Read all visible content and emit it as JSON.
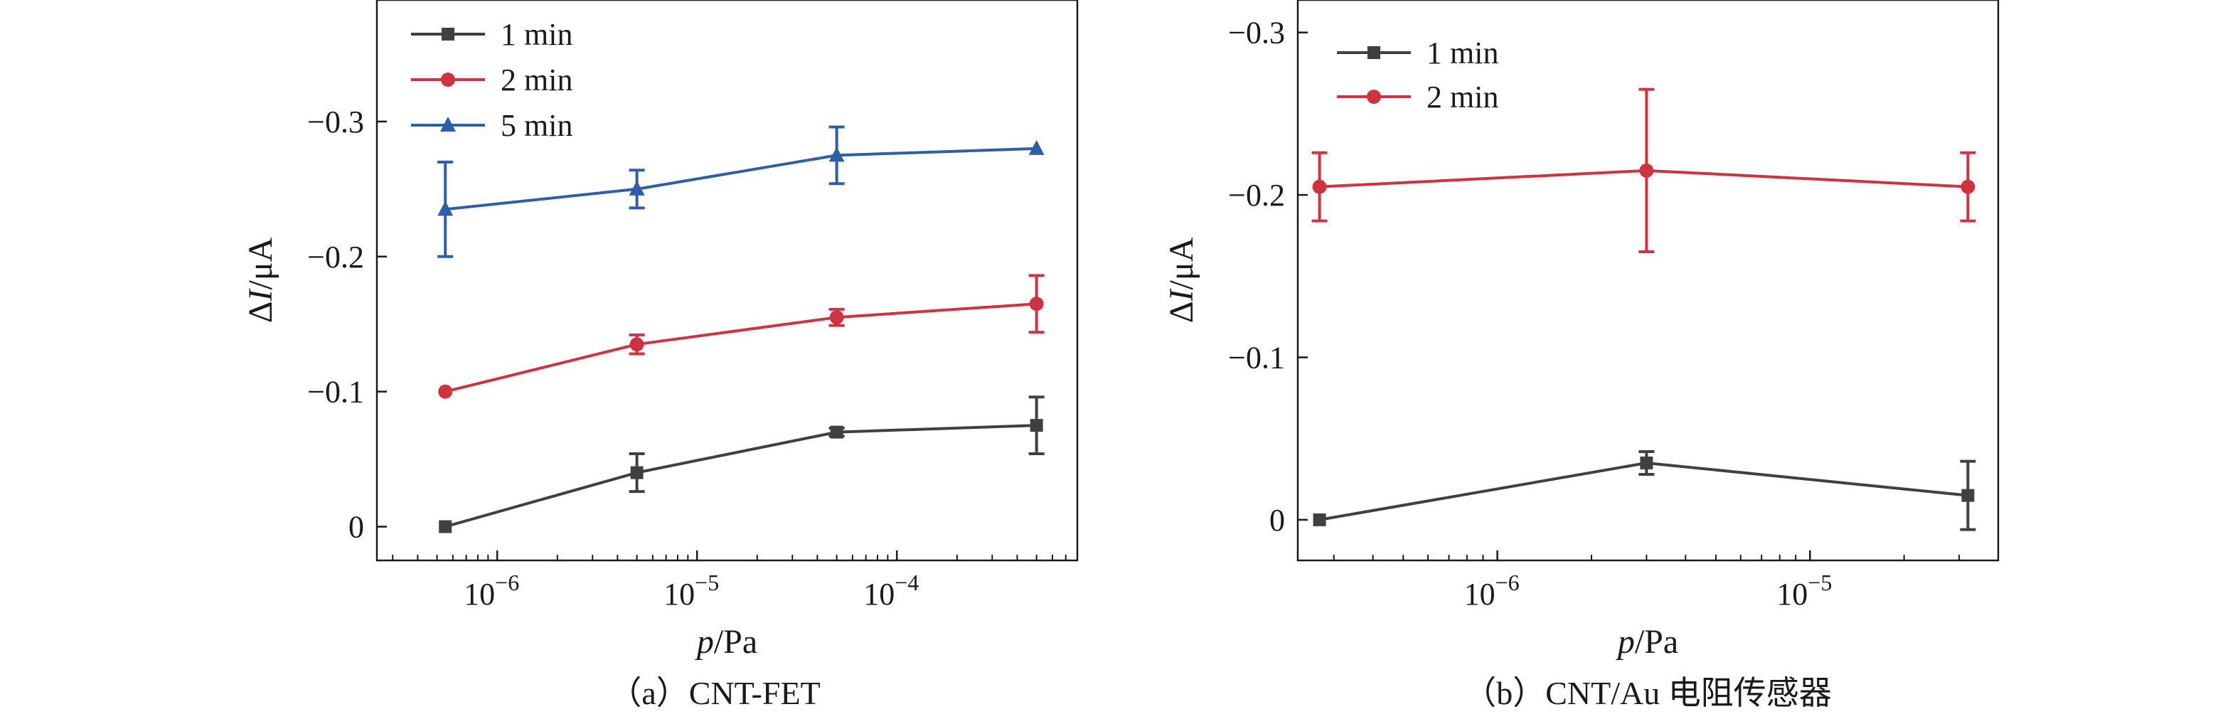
{
  "chart_data": [
    {
      "type": "line",
      "caption": "（a）CNT-FET",
      "xlabel_italic": "p",
      "xlabel_rest": "/Pa",
      "ylabel_delta": "Δ",
      "ylabel_italic": "I",
      "ylabel_rest": "/μA",
      "x_scale": "log",
      "xlim": [
        2.5e-07,
        0.0008
      ],
      "x_ticks": [
        {
          "value": 1e-06,
          "base": "10",
          "exp": "−6"
        },
        {
          "value": 1e-05,
          "base": "10",
          "exp": "−5"
        },
        {
          "value": 0.0001,
          "base": "10",
          "exp": "−4"
        }
      ],
      "y_inverted": true,
      "ylim": [
        0.025,
        -0.39
      ],
      "y_ticks": [
        {
          "value": 0,
          "label": "0"
        },
        {
          "value": -0.1,
          "label": "−0.1"
        },
        {
          "value": -0.2,
          "label": "−0.2"
        },
        {
          "value": -0.3,
          "label": "−0.3"
        }
      ],
      "legend_position": "top-left",
      "series": [
        {
          "name": "1 min",
          "color": "#404040",
          "marker": "square",
          "x": [
            5.5e-07,
            5e-06,
            5e-05,
            0.0005
          ],
          "y": [
            0,
            -0.04,
            -0.07,
            -0.075
          ],
          "err": [
            0,
            0.014,
            0.003,
            0.021
          ]
        },
        {
          "name": "2 min",
          "color": "#d1323f",
          "marker": "circle",
          "x": [
            5.5e-07,
            5e-06,
            5e-05,
            0.0005
          ],
          "y": [
            -0.1,
            -0.135,
            -0.155,
            -0.165
          ],
          "err": [
            0,
            0.007,
            0.006,
            0.021
          ]
        },
        {
          "name": "5 min",
          "color": "#2f5ea8",
          "marker": "triangle",
          "x": [
            5.5e-07,
            5e-06,
            5e-05,
            0.0005
          ],
          "y": [
            -0.235,
            -0.25,
            -0.275,
            -0.28
          ],
          "err": [
            0.035,
            0.014,
            0.021,
            0
          ]
        }
      ]
    },
    {
      "type": "line",
      "caption": "（b）CNT/Au 电阻传感器",
      "xlabel_italic": "p",
      "xlabel_rest": "/Pa",
      "ylabel_delta": "Δ",
      "ylabel_italic": "I",
      "ylabel_rest": "/μA",
      "x_scale": "log",
      "xlim": [
        2.3e-07,
        4e-05
      ],
      "x_ticks": [
        {
          "value": 1e-06,
          "base": "10",
          "exp": "−6"
        },
        {
          "value": 1e-05,
          "base": "10",
          "exp": "−5"
        }
      ],
      "y_inverted": true,
      "ylim": [
        0.025,
        -0.32
      ],
      "y_ticks": [
        {
          "value": 0,
          "label": "0"
        },
        {
          "value": -0.1,
          "label": "−0.1"
        },
        {
          "value": -0.2,
          "label": "−0.2"
        },
        {
          "value": -0.3,
          "label": "−0.3"
        }
      ],
      "legend_position": "top-left",
      "series": [
        {
          "name": "1 min",
          "color": "#404040",
          "marker": "square",
          "x": [
            2.7e-07,
            3e-06,
            3.2e-05
          ],
          "y": [
            0,
            -0.035,
            -0.015
          ],
          "err": [
            0,
            0.007,
            0.021
          ]
        },
        {
          "name": "2 min",
          "color": "#d1323f",
          "marker": "circle",
          "x": [
            2.7e-07,
            3e-06,
            3.2e-05
          ],
          "y": [
            -0.205,
            -0.215,
            -0.205
          ],
          "err": [
            0.021,
            0.05,
            0.021
          ]
        }
      ]
    }
  ]
}
